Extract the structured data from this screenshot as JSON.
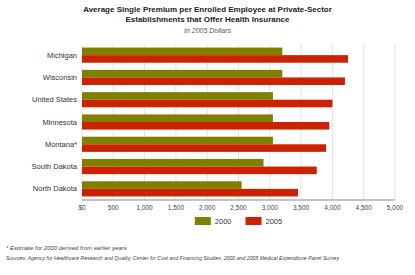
{
  "chart_data": {
    "type": "bar",
    "orientation": "horizontal",
    "title": [
      "Average Single Premium per Enrolled Employee at Private-Sector",
      "Establishments that Offer Health Insurance"
    ],
    "subtitle": "In 2005 Dollars",
    "categories": [
      "Michigan",
      "Wisconsin",
      "United States",
      "Minnesota",
      "Montana*",
      "South Dakota",
      "North Dakota"
    ],
    "series": [
      {
        "name": "2000",
        "color": "#808000",
        "values": [
          3200,
          3200,
          3050,
          3050,
          3050,
          2900,
          2550
        ]
      },
      {
        "name": "2005",
        "color": "#cc2200",
        "values": [
          4250,
          4200,
          4000,
          3950,
          3900,
          3750,
          3450
        ]
      }
    ],
    "xlim": [
      0,
      5000
    ],
    "xticks": [
      {
        "value": 0,
        "label": "$0"
      },
      500,
      {
        "value": 1000,
        "label": "1,000"
      },
      {
        "value": 1500,
        "label": "1,500"
      },
      {
        "value": 2000,
        "label": "2,000"
      },
      {
        "value": 2500,
        "label": "2,500"
      },
      {
        "value": 3000,
        "label": "3,000"
      },
      {
        "value": 3500,
        "label": "3,500"
      },
      {
        "value": 4000,
        "label": "4,000"
      },
      {
        "value": 4500,
        "label": "4,500"
      },
      {
        "value": 5000,
        "label": "5,000"
      }
    ],
    "grid": true,
    "legend": "bottom",
    "annotations": [
      "* Estimate for 2000 derived from earlier years",
      "Sources: Agency for Healthcare Research and Quality, Center for Cost and Financing Studies, 2000 and 2005 Medical Expenditure Panel Survey"
    ]
  }
}
